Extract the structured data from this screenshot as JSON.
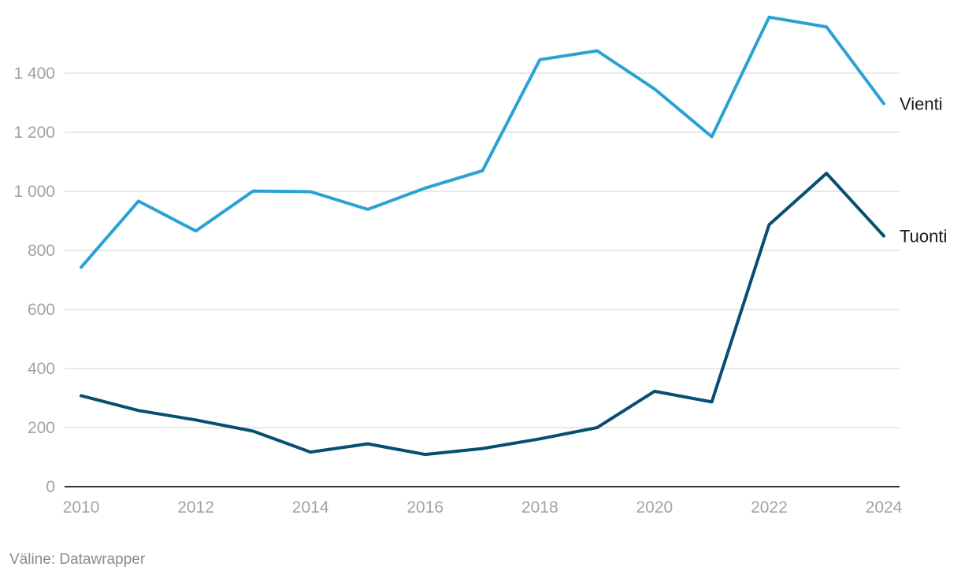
{
  "chart_data": {
    "type": "line",
    "x": [
      2010,
      2011,
      2012,
      2013,
      2014,
      2015,
      2016,
      2017,
      2018,
      2019,
      2020,
      2021,
      2022,
      2023,
      2024
    ],
    "series": [
      {
        "name": "Vienti",
        "color": "#29a3d2",
        "values": [
          743,
          967,
          866,
          1001,
          999,
          939,
          1011,
          1070,
          1446,
          1476,
          1347,
          1185,
          1590,
          1557,
          1297
        ]
      },
      {
        "name": "Tuonti",
        "color": "#064f73",
        "values": [
          308,
          258,
          226,
          188,
          117,
          145,
          109,
          129,
          162,
          200,
          323,
          287,
          887,
          1061,
          849
        ]
      }
    ],
    "ylim": [
      0,
      1600
    ],
    "y_ticks": [
      {
        "value": 0,
        "label": "0"
      },
      {
        "value": 200,
        "label": "200"
      },
      {
        "value": 400,
        "label": "400"
      },
      {
        "value": 600,
        "label": "600"
      },
      {
        "value": 800,
        "label": "800"
      },
      {
        "value": 1000,
        "label": "1 000"
      },
      {
        "value": 1200,
        "label": "1 200"
      },
      {
        "value": 1400,
        "label": "1 400"
      }
    ],
    "x_ticks": [
      {
        "value": 2010,
        "label": "2010"
      },
      {
        "value": 2012,
        "label": "2012"
      },
      {
        "value": 2014,
        "label": "2014"
      },
      {
        "value": 2016,
        "label": "2016"
      },
      {
        "value": 2018,
        "label": "2018"
      },
      {
        "value": 2020,
        "label": "2020"
      },
      {
        "value": 2022,
        "label": "2022"
      },
      {
        "value": 2024,
        "label": "2024"
      }
    ],
    "grid": true,
    "legend": "direct labels at line ends",
    "grid_color": "#e0e0e0",
    "axis_color": "#333333"
  },
  "footer": {
    "source": "Väline: Datawrapper"
  }
}
